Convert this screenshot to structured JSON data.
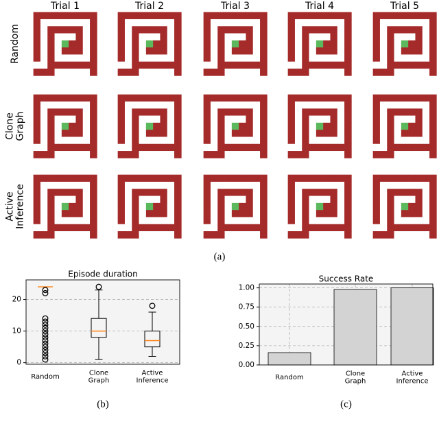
{
  "maze_panel": {
    "columns": [
      "Trial 1",
      "Trial 2",
      "Trial 3",
      "Trial 4",
      "Trial 5"
    ],
    "rows": [
      "Random",
      "Clone\nGraph",
      "Active\nInference"
    ],
    "caption": "(a)"
  },
  "chart_data": [
    {
      "type": "boxplot",
      "title": "Episode duration",
      "categories": [
        "Random",
        "Clone\nGraph",
        "Active\nInference"
      ],
      "boxes": [
        {
          "min": 24,
          "q1": 24,
          "median": 24,
          "q3": 24,
          "max": 24,
          "outliers": [
            1,
            2,
            3,
            4,
            5,
            6,
            7,
            8,
            9,
            10,
            11,
            12,
            13,
            14,
            22,
            23
          ]
        },
        {
          "min": 1,
          "q1": 8,
          "median": 10,
          "q3": 14,
          "max": 23,
          "outliers": [
            24
          ]
        },
        {
          "min": 2,
          "q1": 5,
          "median": 7,
          "q3": 10,
          "max": 16,
          "outliers": [
            18
          ]
        }
      ],
      "color": "#ff7f0e",
      "ylim": [
        -0.5,
        26.2
      ],
      "yticks": [
        0,
        10,
        20
      ],
      "grid": true,
      "caption": "(b)"
    },
    {
      "type": "bar",
      "title": "Success Rate",
      "categories": [
        "Random",
        "Clone\nGraph",
        "Active\nInference"
      ],
      "values": [
        0.16,
        0.98,
        1.0
      ],
      "color": "#d3d3d3",
      "ylim": [
        0,
        1.05
      ],
      "yticks": [
        {
          "value": 0,
          "label": "0.00"
        },
        {
          "value": 0.25,
          "label": "0.25"
        },
        {
          "value": 0.5,
          "label": "0.50"
        },
        {
          "value": 0.75,
          "label": "0.75"
        },
        {
          "value": 1.0,
          "label": "1.00"
        }
      ],
      "grid": true,
      "caption": "(c)"
    }
  ]
}
